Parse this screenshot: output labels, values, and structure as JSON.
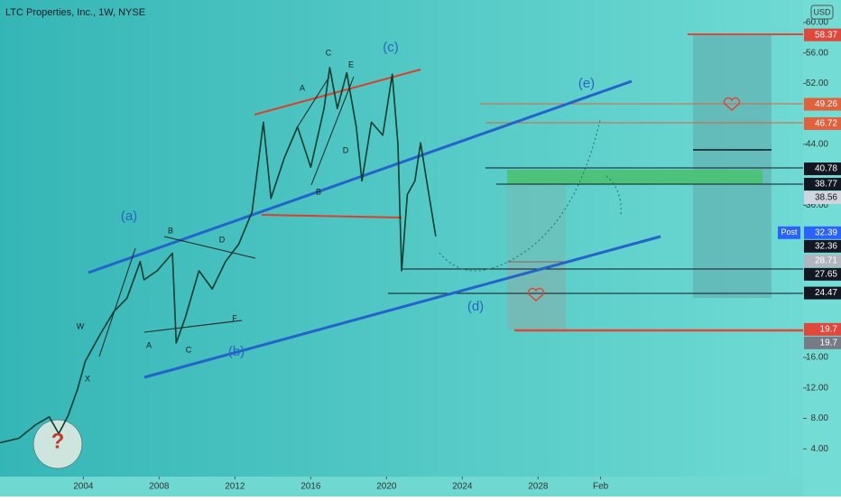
{
  "chart_data": {
    "type": "line",
    "title": "LTC Properties, Inc., 1W, NYSE",
    "currency_label": "USD",
    "x": [
      1999.6,
      2000.6,
      2001.5,
      2002.2,
      2002.7,
      2003.2,
      2003.7,
      2004.1,
      2004.9,
      2005.6,
      2006.3,
      2007.0,
      2007.2,
      2007.9,
      2008.7,
      2008.9,
      2009.4,
      2010.1,
      2010.8,
      2011.5,
      2012.2,
      2012.9,
      2013.5,
      2013.9,
      2014.6,
      2015.3,
      2016.0,
      2016.7,
      2017.0,
      2017.4,
      2017.9,
      2018.4,
      2018.7,
      2019.2,
      2019.8,
      2020.3,
      2020.6,
      2020.8,
      2021.1,
      2021.5,
      2021.8,
      2022.2,
      2022.6
    ],
    "series": [
      {
        "name": "LTC",
        "color": "#0d3b2e",
        "values": [
          4.8,
          5.4,
          7.2,
          8.2,
          6.0,
          8.4,
          11.9,
          15.5,
          19.1,
          22.0,
          23.8,
          28.6,
          26.2,
          27.4,
          29.7,
          17.9,
          21.4,
          27.4,
          25.0,
          28.6,
          30.9,
          35.1,
          46.9,
          36.9,
          42.2,
          46.3,
          41.0,
          48.7,
          54.1,
          48.7,
          53.4,
          46.3,
          39.2,
          46.9,
          45.2,
          53.2,
          44.0,
          27.4,
          37.4,
          39.2,
          44.2,
          38.0,
          31.9
        ]
      }
    ],
    "xlim": [
      1999.6,
      2041.7
    ],
    "xticks": [
      2004,
      2008,
      2012,
      2016,
      2020,
      2024,
      2028,
      {
        "value": 2031.3,
        "label": "Feb"
      }
    ],
    "ylim": [
      0,
      62.6
    ],
    "yticks": [
      {
        "value": 4,
        "label": "4.00"
      },
      {
        "value": 8,
        "label": "8.00"
      },
      {
        "value": 12,
        "label": "12.00"
      },
      {
        "value": 16,
        "label": "16.00"
      },
      {
        "value": 36,
        "label": "36.00"
      },
      {
        "value": 44,
        "label": "44.00"
      },
      {
        "value": 52,
        "label": "52.00"
      },
      {
        "value": 56,
        "label": "56.00"
      },
      {
        "value": 60,
        "label": "60.00"
      }
    ],
    "levels": [
      {
        "value": 58.37,
        "color": "#e0483b"
      },
      {
        "value": 49.26,
        "color": "#e0613b"
      },
      {
        "value": 46.72,
        "color": "#e0613b"
      },
      {
        "value": 40.78,
        "color": "#131722"
      },
      {
        "value": 38.77,
        "color": "#131722"
      },
      {
        "value": 38.56,
        "color": "#d1d4dc"
      },
      {
        "value": 32.39,
        "color": "#2962ff",
        "tag": "Post"
      },
      {
        "value": 32.36,
        "color": "#131722"
      },
      {
        "value": 28.71,
        "color": "#b2b5be"
      },
      {
        "value": 27.65,
        "color": "#131722"
      },
      {
        "value": 24.47,
        "color": "#131722"
      },
      {
        "value": 19.7,
        "color": "#e0483b"
      },
      {
        "value": 19.7,
        "color": "#787b86"
      }
    ],
    "annotations": [
      "(a)",
      "(b)",
      "(c)",
      "(d)",
      "(e)",
      "A",
      "B",
      "C",
      "D",
      "E",
      "W",
      "X",
      "A",
      "B",
      "C",
      "D",
      "F",
      "?"
    ]
  }
}
